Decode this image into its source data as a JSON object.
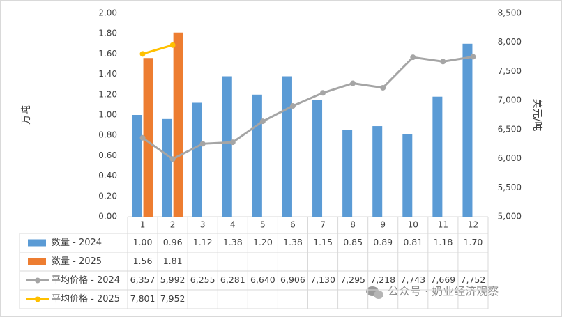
{
  "chart_data": {
    "type": "combo",
    "categories": [
      "1",
      "2",
      "3",
      "4",
      "5",
      "6",
      "7",
      "8",
      "9",
      "10",
      "11",
      "12"
    ],
    "ylabel": "万吨",
    "y2label": "美元/吨",
    "ylim": [
      0,
      2
    ],
    "yticks": [
      {
        "value": 0,
        "label": "0.00"
      },
      {
        "value": 0.2,
        "label": "0.20"
      },
      {
        "value": 0.4,
        "label": "0.40"
      },
      {
        "value": 0.6,
        "label": "0.60"
      },
      {
        "value": 0.8,
        "label": "0.80"
      },
      {
        "value": 1,
        "label": "1.00"
      },
      {
        "value": 1.2,
        "label": "1.20"
      },
      {
        "value": 1.4,
        "label": "1.40"
      },
      {
        "value": 1.6,
        "label": "1.60"
      },
      {
        "value": 1.8,
        "label": "1.80"
      },
      {
        "value": 2,
        "label": "2.00"
      }
    ],
    "y2lim": [
      5000,
      8500
    ],
    "y2ticks": [
      {
        "value": 5000,
        "label": "5,000"
      },
      {
        "value": 5500,
        "label": "5,500"
      },
      {
        "value": 6000,
        "label": "6,000"
      },
      {
        "value": 6500,
        "label": "6,500"
      },
      {
        "value": 7000,
        "label": "7,000"
      },
      {
        "value": 7500,
        "label": "7,500"
      },
      {
        "value": 8000,
        "label": "8,000"
      },
      {
        "value": 8500,
        "label": "8,500"
      }
    ],
    "series": [
      {
        "name": "数量 - 2024",
        "type": "bar",
        "color": "#5b9bd5",
        "values": [
          1.0,
          0.96,
          1.12,
          1.38,
          1.2,
          1.38,
          1.15,
          0.85,
          0.89,
          0.81,
          1.18,
          1.7
        ],
        "value_labels": [
          "1.00",
          "0.96",
          "1.12",
          "1.38",
          "1.20",
          "1.38",
          "1.15",
          "0.85",
          "0.89",
          "0.81",
          "1.18",
          "1.70"
        ]
      },
      {
        "name": "数量 - 2025",
        "type": "bar",
        "color": "#ed7d31",
        "values": [
          1.56,
          1.81,
          null,
          null,
          null,
          null,
          null,
          null,
          null,
          null,
          null,
          null
        ],
        "value_labels": [
          "1.56",
          "1.81",
          null,
          null,
          null,
          null,
          null,
          null,
          null,
          null,
          null,
          null
        ]
      },
      {
        "name": "平均价格 - 2024",
        "type": "line",
        "axis": "y2",
        "color": "#a5a5a5",
        "values": [
          6357,
          5992,
          6255,
          6281,
          6640,
          6906,
          7130,
          7295,
          7218,
          7743,
          7669,
          7752
        ],
        "value_labels": [
          "6,357",
          "5,992",
          "6,255",
          "6,281",
          "6,640",
          "6,906",
          "7,130",
          "7,295",
          "7,218",
          "7,743",
          "7,669",
          "7,752"
        ]
      },
      {
        "name": "平均价格 - 2025",
        "type": "line",
        "axis": "y2",
        "color": "#ffc000",
        "values": [
          7801,
          7952,
          null,
          null,
          null,
          null,
          null,
          null,
          null,
          null,
          null,
          null
        ],
        "value_labels": [
          "7,801",
          "7,952",
          null,
          null,
          null,
          null,
          null,
          null,
          null,
          null,
          null,
          null
        ]
      }
    ],
    "watermark": "公众号 · 奶业经济观察"
  }
}
